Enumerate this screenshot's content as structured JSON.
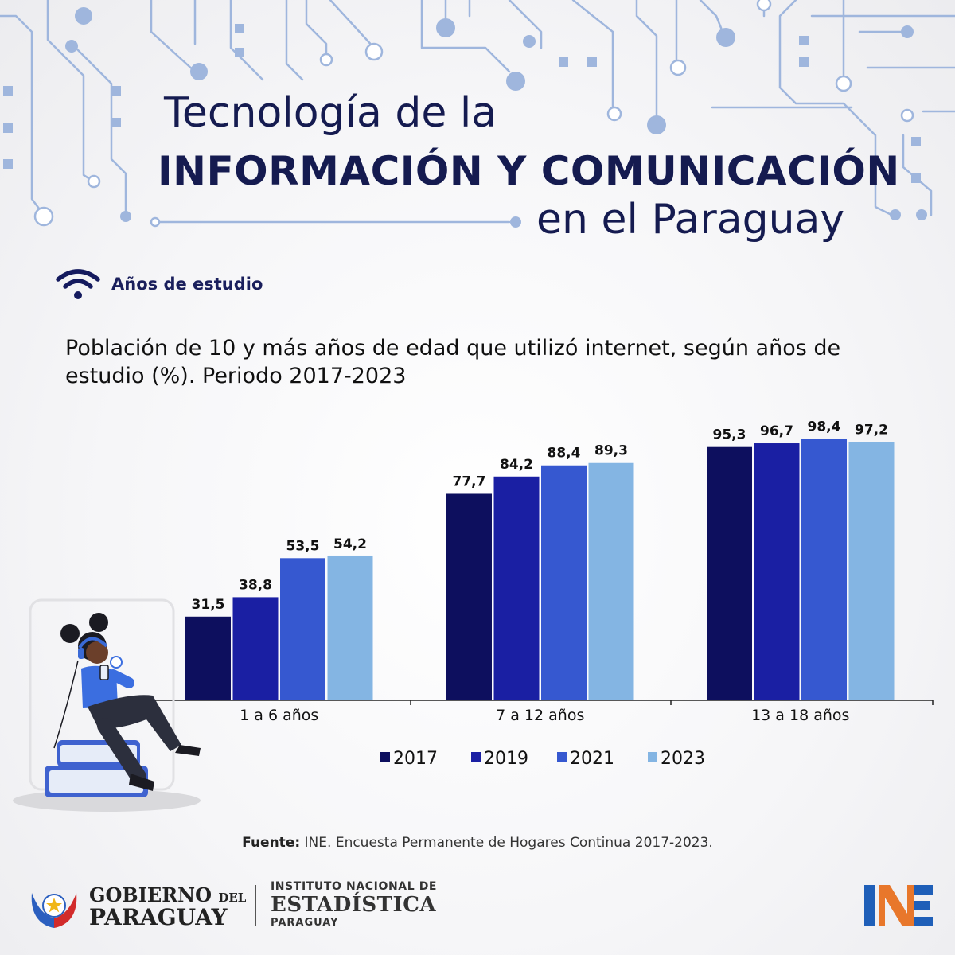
{
  "header": {
    "title_line1": "Tecnología de la",
    "title_line2": "INFORMACIÓN  Y COMUNICACIÓN",
    "title_line3": "en el Paraguay"
  },
  "section": {
    "icon": "wifi-icon",
    "label": "Años de estudio"
  },
  "chart_subtitle": "Población de 10 y más años de edad que utilizó internet, según años de estudio (%). Periodo 2017-2023",
  "chart_data": {
    "type": "bar",
    "title": "Población de 10 y más años de edad que utilizó internet, según años de estudio (%). Periodo 2017-2023",
    "categories": [
      "1 a 6 años",
      "7 a 12 años",
      "13 a 18 años"
    ],
    "series": [
      {
        "name": "2017",
        "color": "#0d0f5e",
        "values": [
          31.5,
          77.7,
          95.3
        ],
        "labels": [
          "31,5",
          "77,7",
          "95,3"
        ]
      },
      {
        "name": "2019",
        "color": "#1a1fa3",
        "values": [
          38.8,
          84.2,
          96.7
        ],
        "labels": [
          "38,8",
          "84,2",
          "96,7"
        ]
      },
      {
        "name": "2021",
        "color": "#3658d0",
        "values": [
          53.5,
          88.4,
          98.4
        ],
        "labels": [
          "53,5",
          "88,4",
          "98,4"
        ]
      },
      {
        "name": "2023",
        "color": "#84b5e3",
        "values": [
          54.2,
          89.3,
          97.2
        ],
        "labels": [
          "54,2",
          "89,3",
          "97,2"
        ]
      }
    ],
    "ylim": [
      0,
      100
    ],
    "grid": false,
    "legend": "bottom"
  },
  "source": {
    "label": "Fuente:",
    "text": " INE. Encuesta Permanente de Hogares Continua 2017-2023."
  },
  "footer": {
    "gov_line1": "GOBIERNO",
    "gov_del": "DEL",
    "gov_line2": "PARAGUAY",
    "ine_line1": "INSTITUTO NACIONAL DE",
    "ine_line2": "ESTADÍSTICA",
    "ine_line3": "PARAGUAY",
    "ine_logo_text": "INE"
  }
}
